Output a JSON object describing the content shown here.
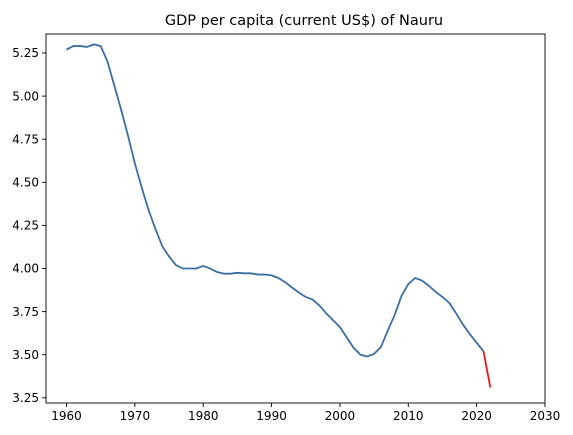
{
  "chart_data": {
    "type": "line",
    "title": "GDP per capita (current US$) of Nauru",
    "xlabel": "",
    "ylabel": "",
    "xlim": [
      1957,
      2030
    ],
    "ylim": [
      3.22,
      5.36
    ],
    "x_ticks": [
      1960,
      1970,
      1980,
      1990,
      2000,
      2010,
      2020,
      2030
    ],
    "y_ticks": [
      3.25,
      3.5,
      3.75,
      4.0,
      4.25,
      4.5,
      4.75,
      5.0,
      5.25
    ],
    "grid": false,
    "series": [
      {
        "color": "#3a6ea5",
        "x": [
          1960,
          1961,
          1962,
          1963,
          1964,
          1965,
          1966,
          1967,
          1968,
          1969,
          1970,
          1971,
          1972,
          1973,
          1974,
          1975,
          1976,
          1977,
          1978,
          1979,
          1980,
          1981,
          1982,
          1983,
          1984,
          1985,
          1986,
          1987,
          1988,
          1989,
          1990,
          1991,
          1992,
          1993,
          1994,
          1995,
          1996,
          1997,
          1998,
          1999,
          2000,
          2001,
          2002,
          2003,
          2004,
          2005,
          2006,
          2007,
          2008,
          2009,
          2010,
          2011,
          2012,
          2013,
          2014,
          2015,
          2016,
          2017,
          2018,
          2019,
          2020,
          2021
        ],
        "values": [
          5.27,
          5.29,
          5.29,
          5.285,
          5.3,
          5.29,
          5.2,
          5.06,
          4.92,
          4.77,
          4.61,
          4.47,
          4.34,
          4.23,
          4.13,
          4.07,
          4.02,
          4.0,
          4.0,
          4.0,
          4.015,
          4.0,
          3.98,
          3.97,
          3.97,
          3.975,
          3.972,
          3.972,
          3.965,
          3.965,
          3.96,
          3.945,
          3.92,
          3.89,
          3.86,
          3.835,
          3.82,
          3.785,
          3.74,
          3.7,
          3.66,
          3.6,
          3.54,
          3.5,
          3.49,
          3.505,
          3.545,
          3.64,
          3.73,
          3.84,
          3.91,
          3.945,
          3.93,
          3.9,
          3.865,
          3.835,
          3.8,
          3.74,
          3.675,
          3.62,
          3.57,
          3.52
        ]
      },
      {
        "color": "#e8191c",
        "x": [
          2021,
          2022
        ],
        "values": [
          3.52,
          3.31
        ]
      }
    ]
  }
}
